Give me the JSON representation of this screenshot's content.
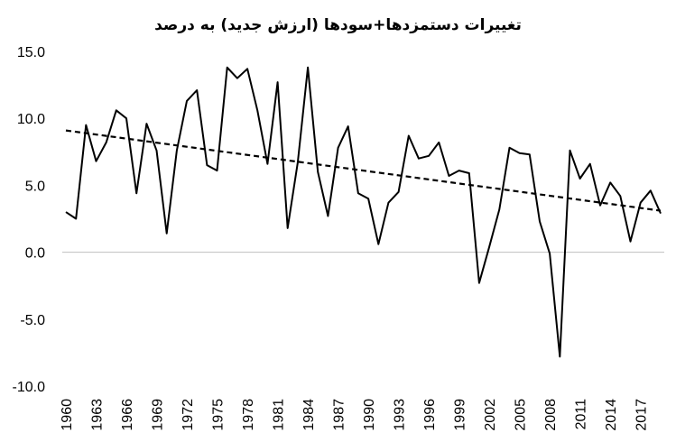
{
  "chart_data": {
    "type": "line",
    "title": "تغییرات دستمزدها+سودها (ارزش جدید) به درصد",
    "xlabel": "",
    "ylabel": "",
    "ylim": [
      -10,
      15
    ],
    "yticks": [
      "15.0",
      "10.0",
      "5.0",
      "0.0",
      "-5.0",
      "-10.0"
    ],
    "xticks": [
      "1960",
      "1963",
      "1966",
      "1969",
      "1972",
      "1975",
      "1978",
      "1981",
      "1984",
      "1987",
      "1990",
      "1993",
      "1996",
      "1999",
      "2002",
      "2005",
      "2008",
      "2011",
      "2014",
      "2017"
    ],
    "x": [
      1960,
      1961,
      1962,
      1963,
      1964,
      1965,
      1966,
      1967,
      1968,
      1969,
      1970,
      1971,
      1972,
      1973,
      1974,
      1975,
      1976,
      1977,
      1978,
      1979,
      1980,
      1981,
      1982,
      1983,
      1984,
      1985,
      1986,
      1987,
      1988,
      1989,
      1990,
      1991,
      1992,
      1993,
      1994,
      1995,
      1996,
      1997,
      1998,
      1999,
      2000,
      2001,
      2002,
      2003,
      2004,
      2005,
      2006,
      2007,
      2008,
      2009,
      2010,
      2011,
      2012,
      2013,
      2014,
      2015,
      2016,
      2017,
      2018,
      2019
    ],
    "series": [
      {
        "values": [
          3.0,
          2.5,
          9.5,
          6.8,
          8.2,
          10.6,
          10.0,
          4.4,
          9.6,
          7.6,
          1.4,
          7.6,
          11.3,
          12.1,
          6.5,
          6.1,
          13.8,
          13.0,
          13.7,
          10.6,
          6.6,
          12.7,
          1.8,
          6.7,
          13.8,
          6.0,
          2.7,
          7.8,
          9.4,
          4.4,
          4.0,
          0.6,
          3.7,
          4.5,
          8.7,
          7.0,
          7.2,
          8.2,
          5.7,
          6.1,
          5.9,
          -2.3,
          0.4,
          3.2,
          7.8,
          7.4,
          7.3,
          2.3,
          -0.1,
          -7.8,
          7.6,
          5.5,
          6.6,
          3.5,
          5.2,
          4.2,
          0.8,
          3.7,
          4.6,
          2.9
        ],
        "color": "#000000",
        "style": "solid"
      },
      {
        "values": [
          9.1,
          3.1
        ],
        "x": [
          1960,
          2019
        ],
        "color": "#000000",
        "style": "dashed"
      }
    ],
    "grid": false,
    "legend": "none"
  }
}
